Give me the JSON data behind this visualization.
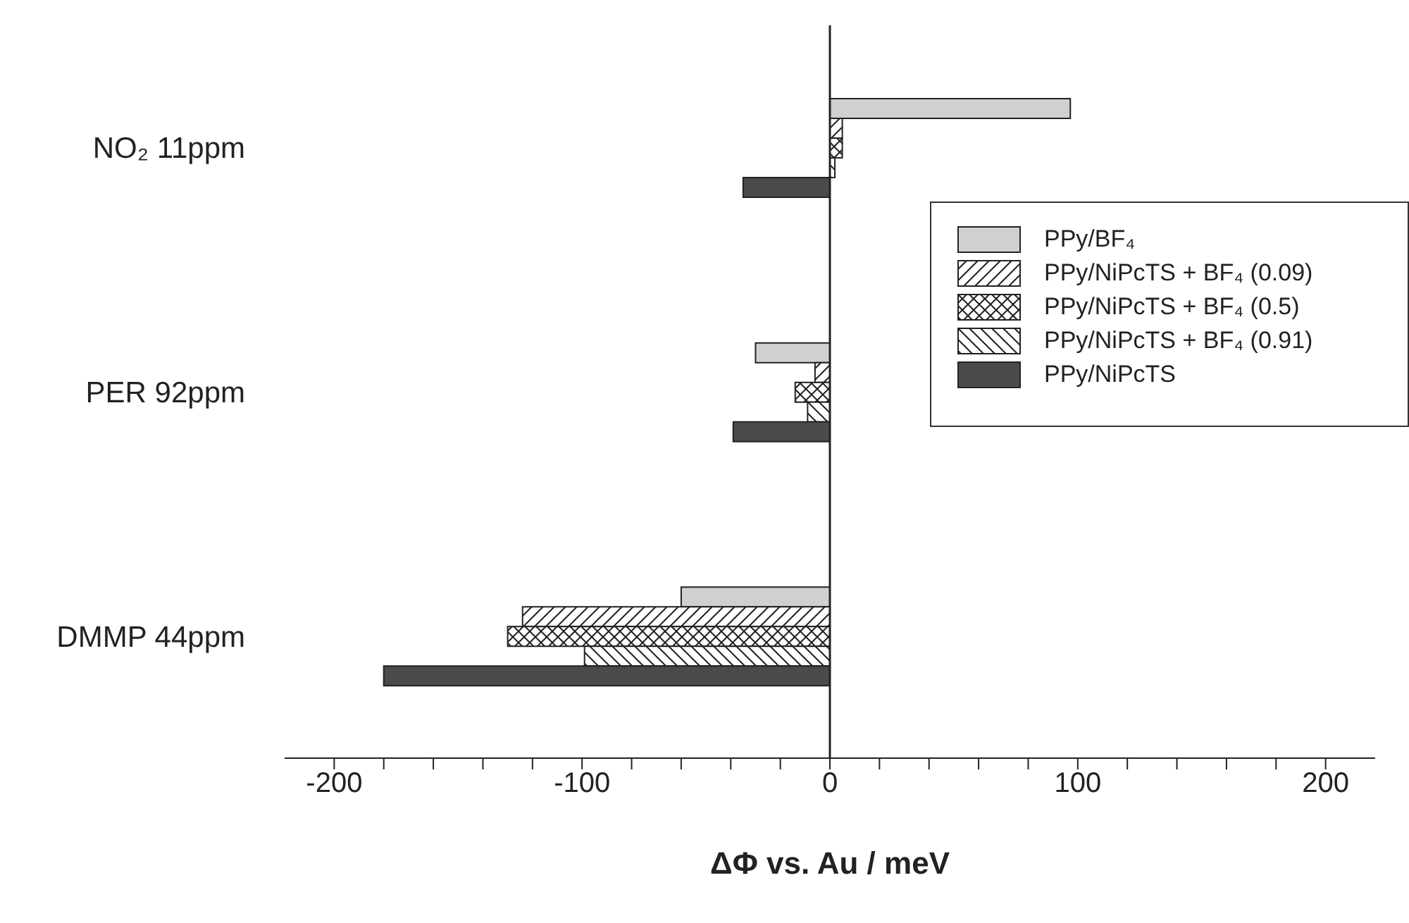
{
  "chart_data": {
    "type": "bar",
    "orientation": "horizontal",
    "xlabel": "ΔΦ vs. Au  / meV",
    "categories": [
      "NO₂ 11ppm",
      "PER 92ppm",
      "DMMP 44ppm"
    ],
    "series": [
      {
        "name": "PPy/BF₄",
        "color": "#d0d0d0",
        "values": [
          97,
          -30,
          -60
        ]
      },
      {
        "name": "PPy/NiPcTS + BF₄ (0.09)",
        "color": "#222222",
        "values": [
          5,
          -6,
          -124
        ]
      },
      {
        "name": "PPy/NiPcTS + BF₄ (0.5)",
        "color": "#222222",
        "values": [
          5,
          -14,
          -130
        ]
      },
      {
        "name": "PPy/NiPcTS + BF₄ (0.91)",
        "color": "#222222",
        "values": [
          2,
          -9,
          -99
        ]
      },
      {
        "name": "PPy/NiPcTS",
        "color": "#4a4a4a",
        "values": [
          -35,
          -39,
          -180
        ]
      }
    ],
    "xlim": [
      -220,
      220
    ],
    "xticks": [
      -200,
      {
        "value": -180,
        "label": null
      },
      {
        "value": -160,
        "label": null
      },
      {
        "value": -140,
        "label": null
      },
      {
        "value": -120,
        "label": null
      },
      -100,
      {
        "value": -80,
        "label": null
      },
      {
        "value": -60,
        "label": null
      },
      {
        "value": -40,
        "label": null
      },
      {
        "value": -20,
        "label": null
      },
      0,
      {
        "value": 20,
        "label": null
      },
      {
        "value": 40,
        "label": null
      },
      {
        "value": 60,
        "label": null
      },
      {
        "value": 80,
        "label": null
      },
      100,
      {
        "value": 120,
        "label": null
      },
      {
        "value": 140,
        "label": null
      },
      {
        "value": 160,
        "label": null
      },
      {
        "value": 180,
        "label": null
      },
      200
    ],
    "legend": "right"
  }
}
